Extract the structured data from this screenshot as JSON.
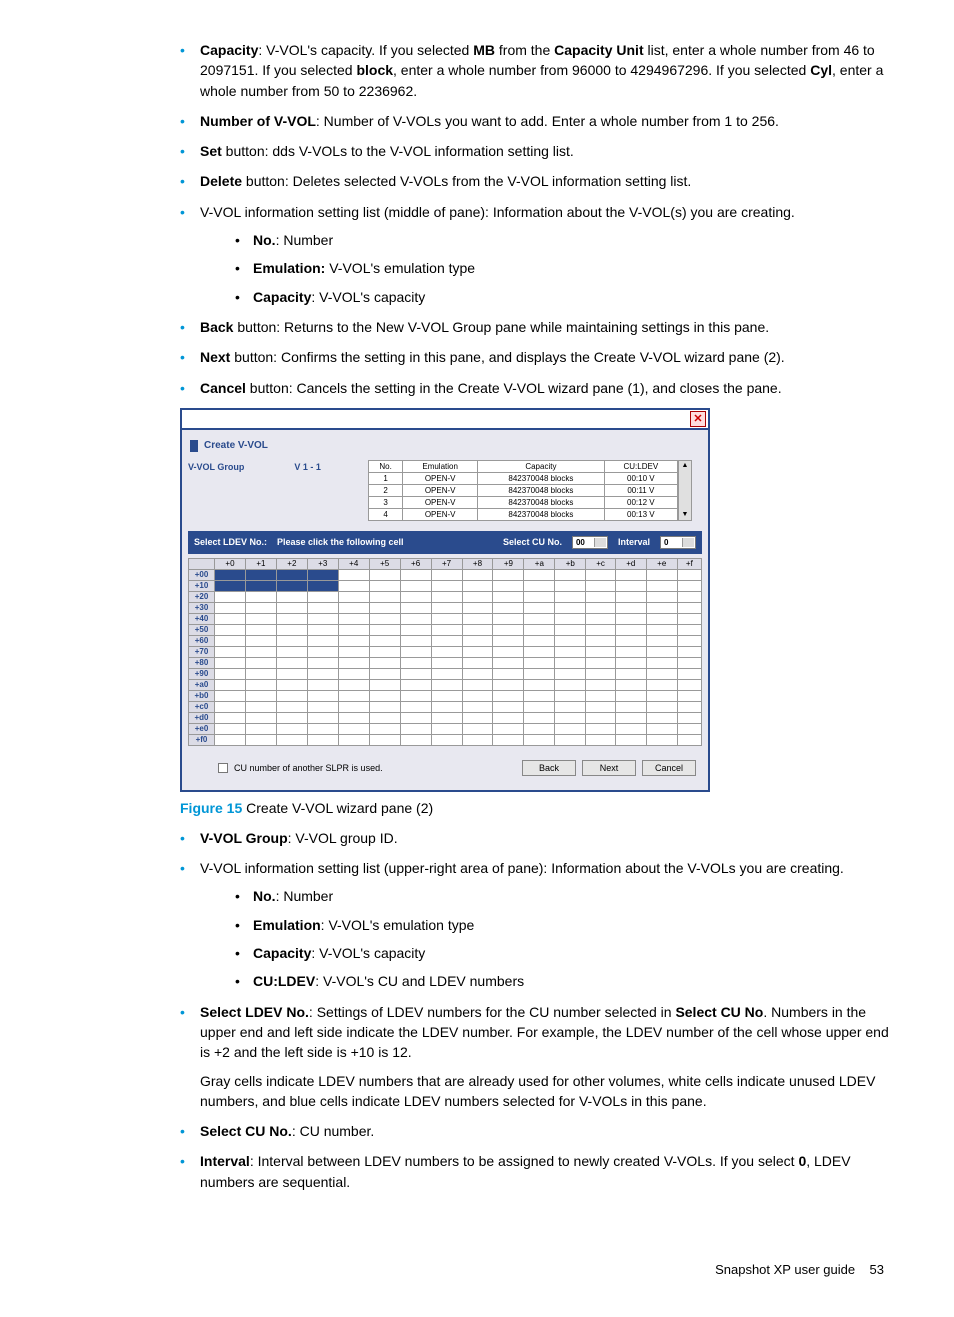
{
  "bullets_top": {
    "capacity_pre": "Capacity",
    "capacity_txt_a": ": V-VOL's capacity. If you selected ",
    "capacity_mb": "MB",
    "capacity_txt_b": " from the ",
    "capacity_unit": "Capacity Unit",
    "capacity_txt_c": " list, enter a whole number from 46 to 2097151. If you selected ",
    "capacity_block": "block",
    "capacity_txt_d": ", enter a whole number from 96000 to 4294967296. If you selected ",
    "capacity_cyl": "Cyl",
    "capacity_txt_e": ", enter a whole number from 50 to 2236962.",
    "numvvol_pre": "Number of V-VOL",
    "numvvol_txt": ": Number of V-VOLs you want to add. Enter a whole number from 1 to 256.",
    "set_pre": "Set",
    "set_txt": " button: dds V-VOLs to the V-VOL information setting list.",
    "delete_pre": "Delete",
    "delete_txt": " button: Deletes selected V-VOLs from the V-VOL information setting list.",
    "infolist_txt": "V-VOL information setting list (middle of pane): Information about the V-VOL(s) you are creating.",
    "sub_no_pre": "No.",
    "sub_no_txt": ": Number",
    "sub_em_pre": "Emulation:",
    "sub_em_txt": " V-VOL's emulation type",
    "sub_cap_pre": "Capacity",
    "sub_cap_txt": ": V-VOL's capacity",
    "back_pre": "Back",
    "back_txt": " button: Returns to the New V-VOL Group pane while maintaining settings in this pane.",
    "next_pre": "Next",
    "next_txt": " button: Confirms the setting in this pane, and displays the Create V-VOL wizard pane (2).",
    "cancel_pre": "Cancel",
    "cancel_txt": " button: Cancels the setting in the Create V-VOL wizard pane (1), and closes the pane."
  },
  "dialog": {
    "title": "Create V-VOL",
    "close": "✕",
    "vvol_group_lbl": "V-VOL Group",
    "vvol_group_val": "V 1 - 1",
    "info_headers": [
      "No.",
      "Emulation",
      "Capacity",
      "CU:LDEV"
    ],
    "info_rows": [
      [
        "1",
        "OPEN-V",
        "842370048 blocks",
        "00:10 V"
      ],
      [
        "2",
        "OPEN-V",
        "842370048 blocks",
        "00:11 V"
      ],
      [
        "3",
        "OPEN-V",
        "842370048 blocks",
        "00:12 V"
      ],
      [
        "4",
        "OPEN-V",
        "842370048 blocks",
        "00:13 V"
      ]
    ],
    "select_ldev_lbl": "Select LDEV No.:",
    "select_ldev_hint": "Please click the following cell",
    "select_cu_lbl": "Select CU No.",
    "select_cu_val": "00",
    "interval_lbl": "Interval",
    "interval_val": "0",
    "grid_cols": [
      "+0",
      "+1",
      "+2",
      "+3",
      "+4",
      "+5",
      "+6",
      "+7",
      "+8",
      "+9",
      "+a",
      "+b",
      "+c",
      "+d",
      "+e",
      "+f"
    ],
    "grid_rows": [
      "+00",
      "+10",
      "+20",
      "+30",
      "+40",
      "+50",
      "+60",
      "+70",
      "+80",
      "+90",
      "+a0",
      "+b0",
      "+c0",
      "+d0",
      "+e0",
      "+f0"
    ],
    "selected_cells": [
      [
        0,
        0
      ],
      [
        0,
        1
      ],
      [
        0,
        2
      ],
      [
        0,
        3
      ],
      [
        1,
        0
      ],
      [
        1,
        1
      ],
      [
        1,
        2
      ],
      [
        1,
        3
      ]
    ],
    "chk_lbl": "CU number of another SLPR is used.",
    "btn_back": "Back",
    "btn_next": "Next",
    "btn_cancel": "Cancel"
  },
  "figure": {
    "label": "Figure 15",
    "caption": " Create V-VOL wizard pane (2)"
  },
  "bullets_bottom": {
    "vg_pre": "V-VOL Group",
    "vg_txt": ": V-VOL group ID.",
    "info_txt": "V-VOL information setting list (upper-right area of pane): Information about the V-VOLs you are creating.",
    "sub_no_pre": "No.",
    "sub_no_txt": ": Number",
    "sub_em_pre": "Emulation",
    "sub_em_txt": ": V-VOL's emulation type",
    "sub_cap_pre": "Capacity",
    "sub_cap_txt": ": V-VOL's capacity",
    "sub_cu_pre": "CU:LDEV",
    "sub_cu_txt": ": V-VOL's CU and LDEV numbers",
    "selldev_pre": "Select LDEV No.",
    "selldev_txt_a": ": Settings of LDEV numbers for the CU number selected in ",
    "selldev_bold": "Select CU No",
    "selldev_txt_b": ". Numbers in the upper end and left side indicate the LDEV number. For example, the LDEV number of the cell whose upper end is +2 and the left side is +10 is 12.",
    "selldev_para2": "Gray cells indicate LDEV numbers that are already used for other volumes, white cells indicate unused LDEV numbers, and blue cells indicate LDEV numbers selected for V-VOLs in this pane.",
    "selcu_pre": "Select CU No.",
    "selcu_txt": ": CU number.",
    "interval_pre": "Interval",
    "interval_txt_a": ": Interval between LDEV numbers to be assigned to newly created V-VOLs. If you select ",
    "interval_zero": "0",
    "interval_txt_b": ", LDEV numbers are sequential."
  },
  "footer": {
    "text": "Snapshot XP user guide",
    "page": "53"
  },
  "colors": {
    "accent": "#0096d6",
    "dialog": "#2a4b8d"
  }
}
